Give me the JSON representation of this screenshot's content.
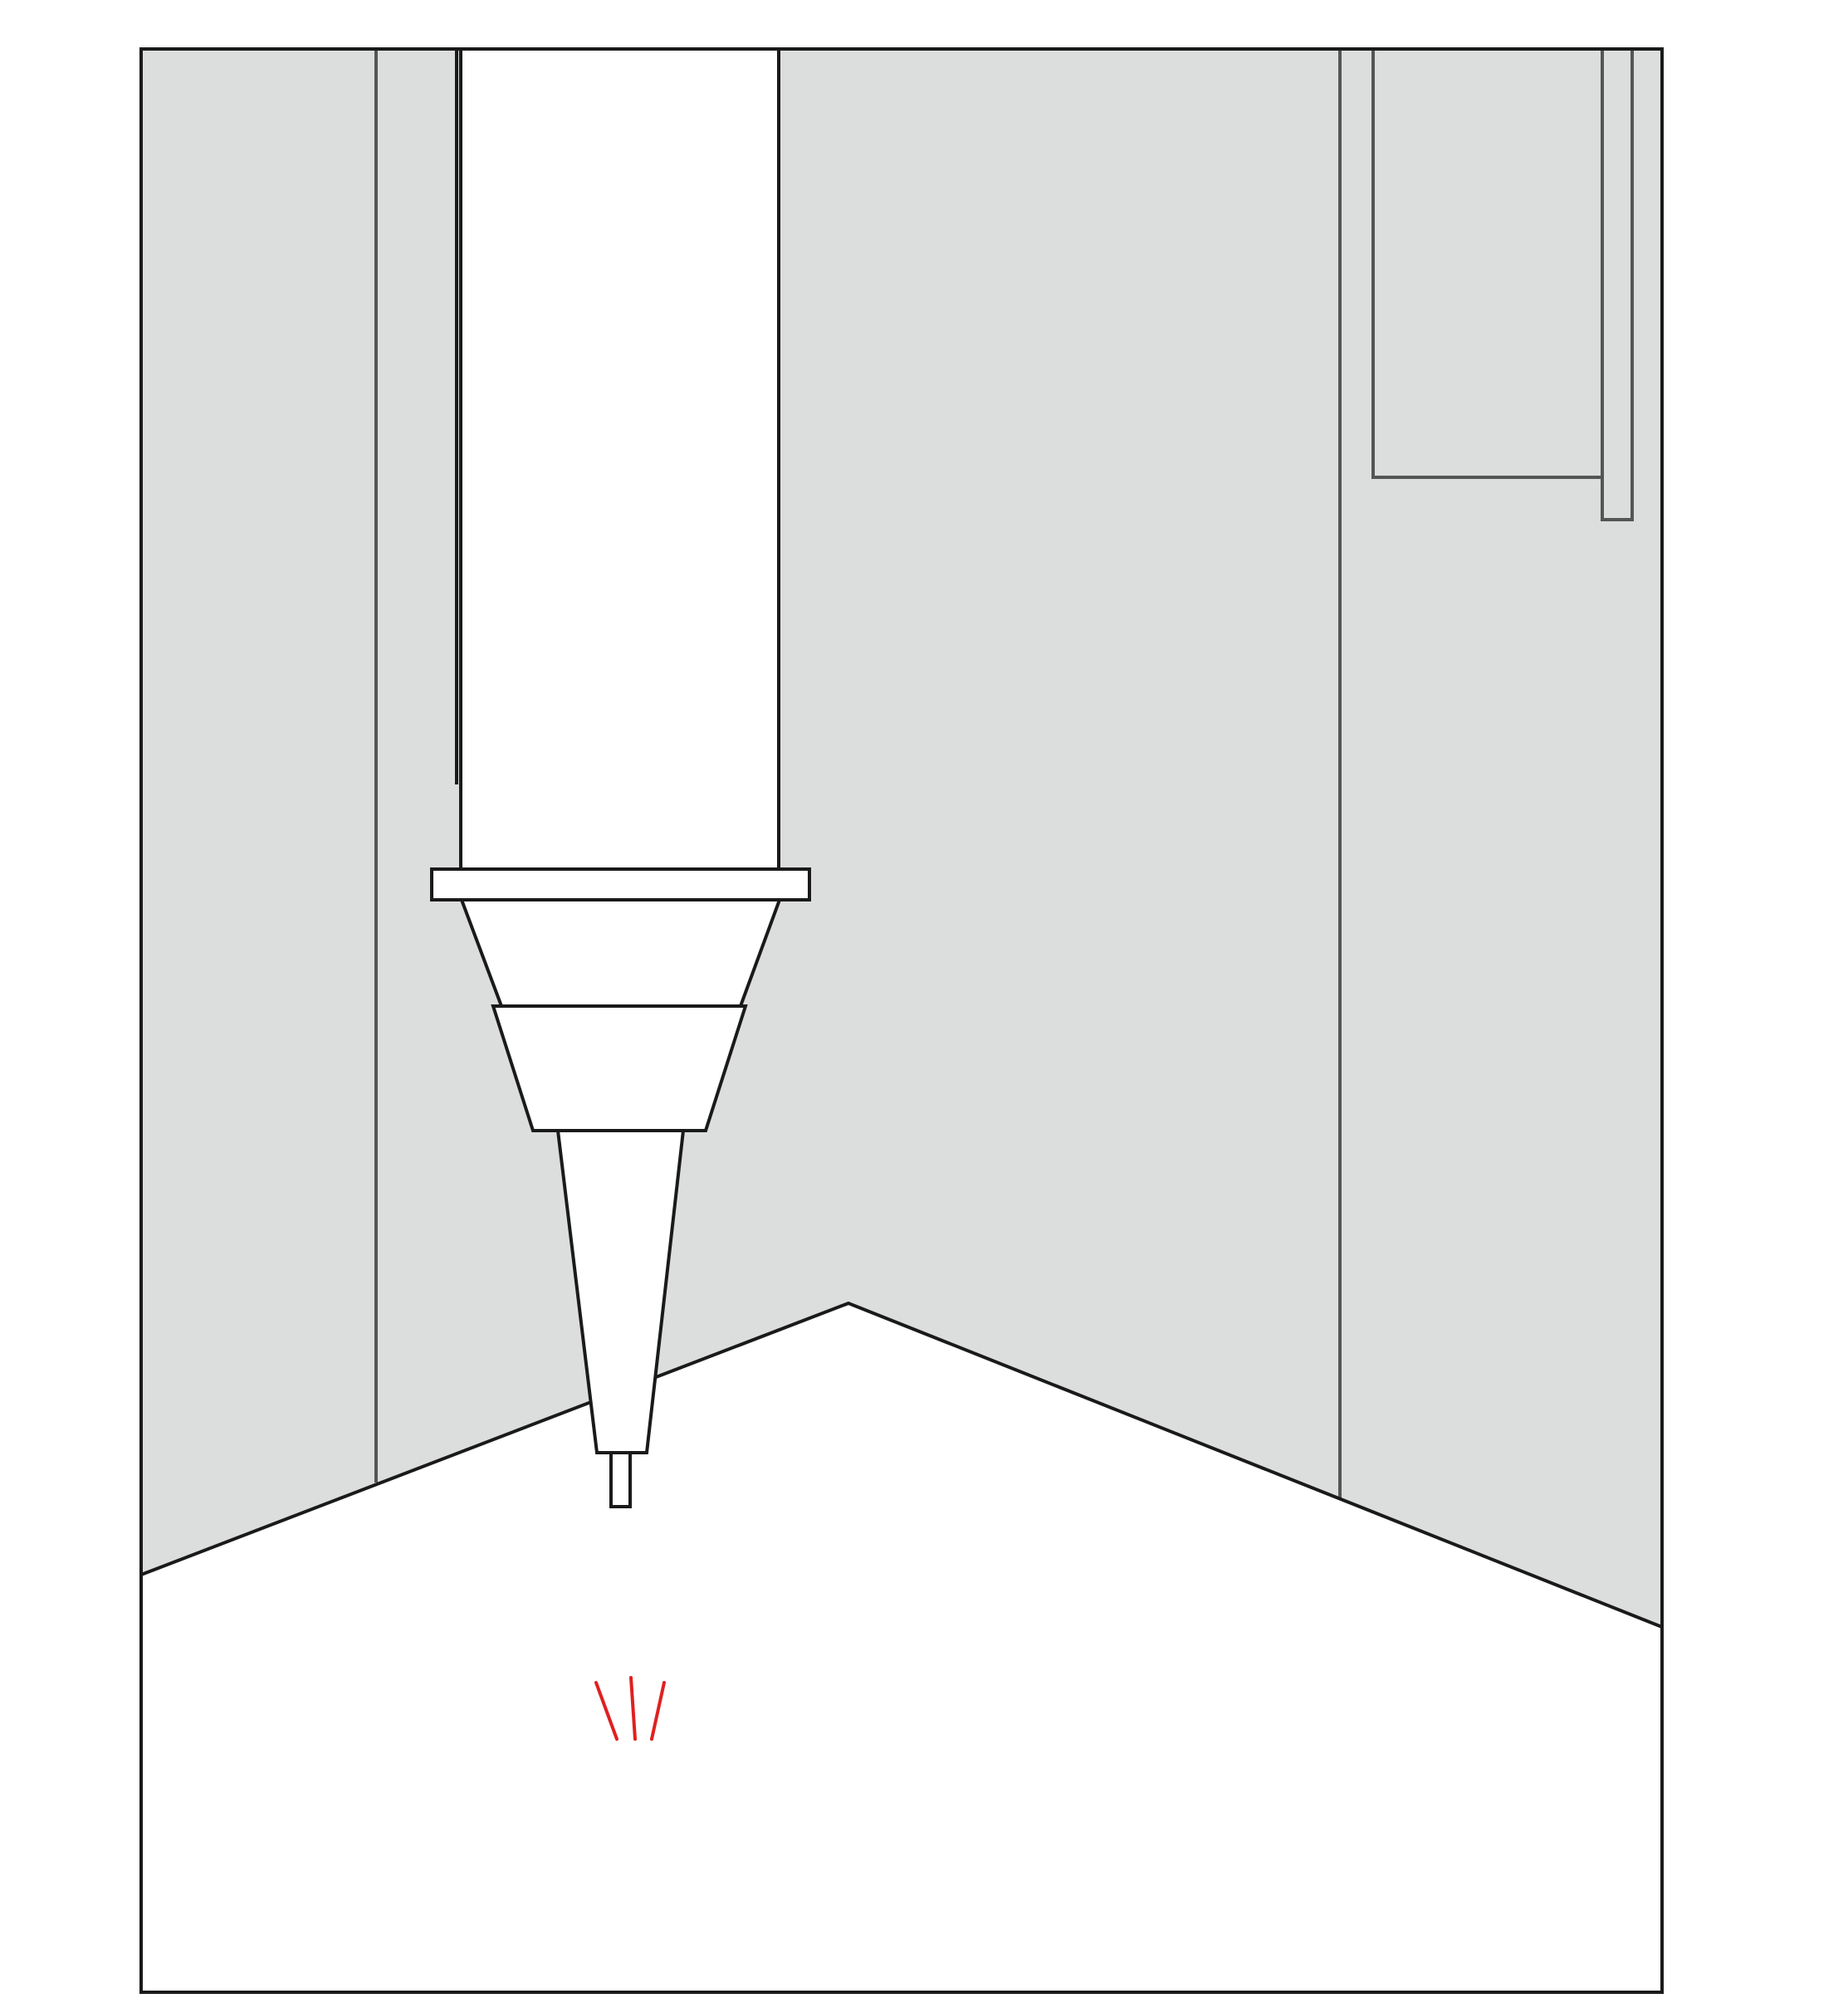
{
  "colors": {
    "page_background": "#ffffff",
    "wall_fill": "#dcdddd",
    "floor_fill": "#ffffff",
    "outline": "#1a1a1a",
    "seam_line": "#555555",
    "gun_body": "#ffffff",
    "motion_marks": "#e02020"
  },
  "icons": {
    "nozzle": "caulk-gun-nozzle-icon",
    "motion": "red-motion-marks-icon"
  }
}
